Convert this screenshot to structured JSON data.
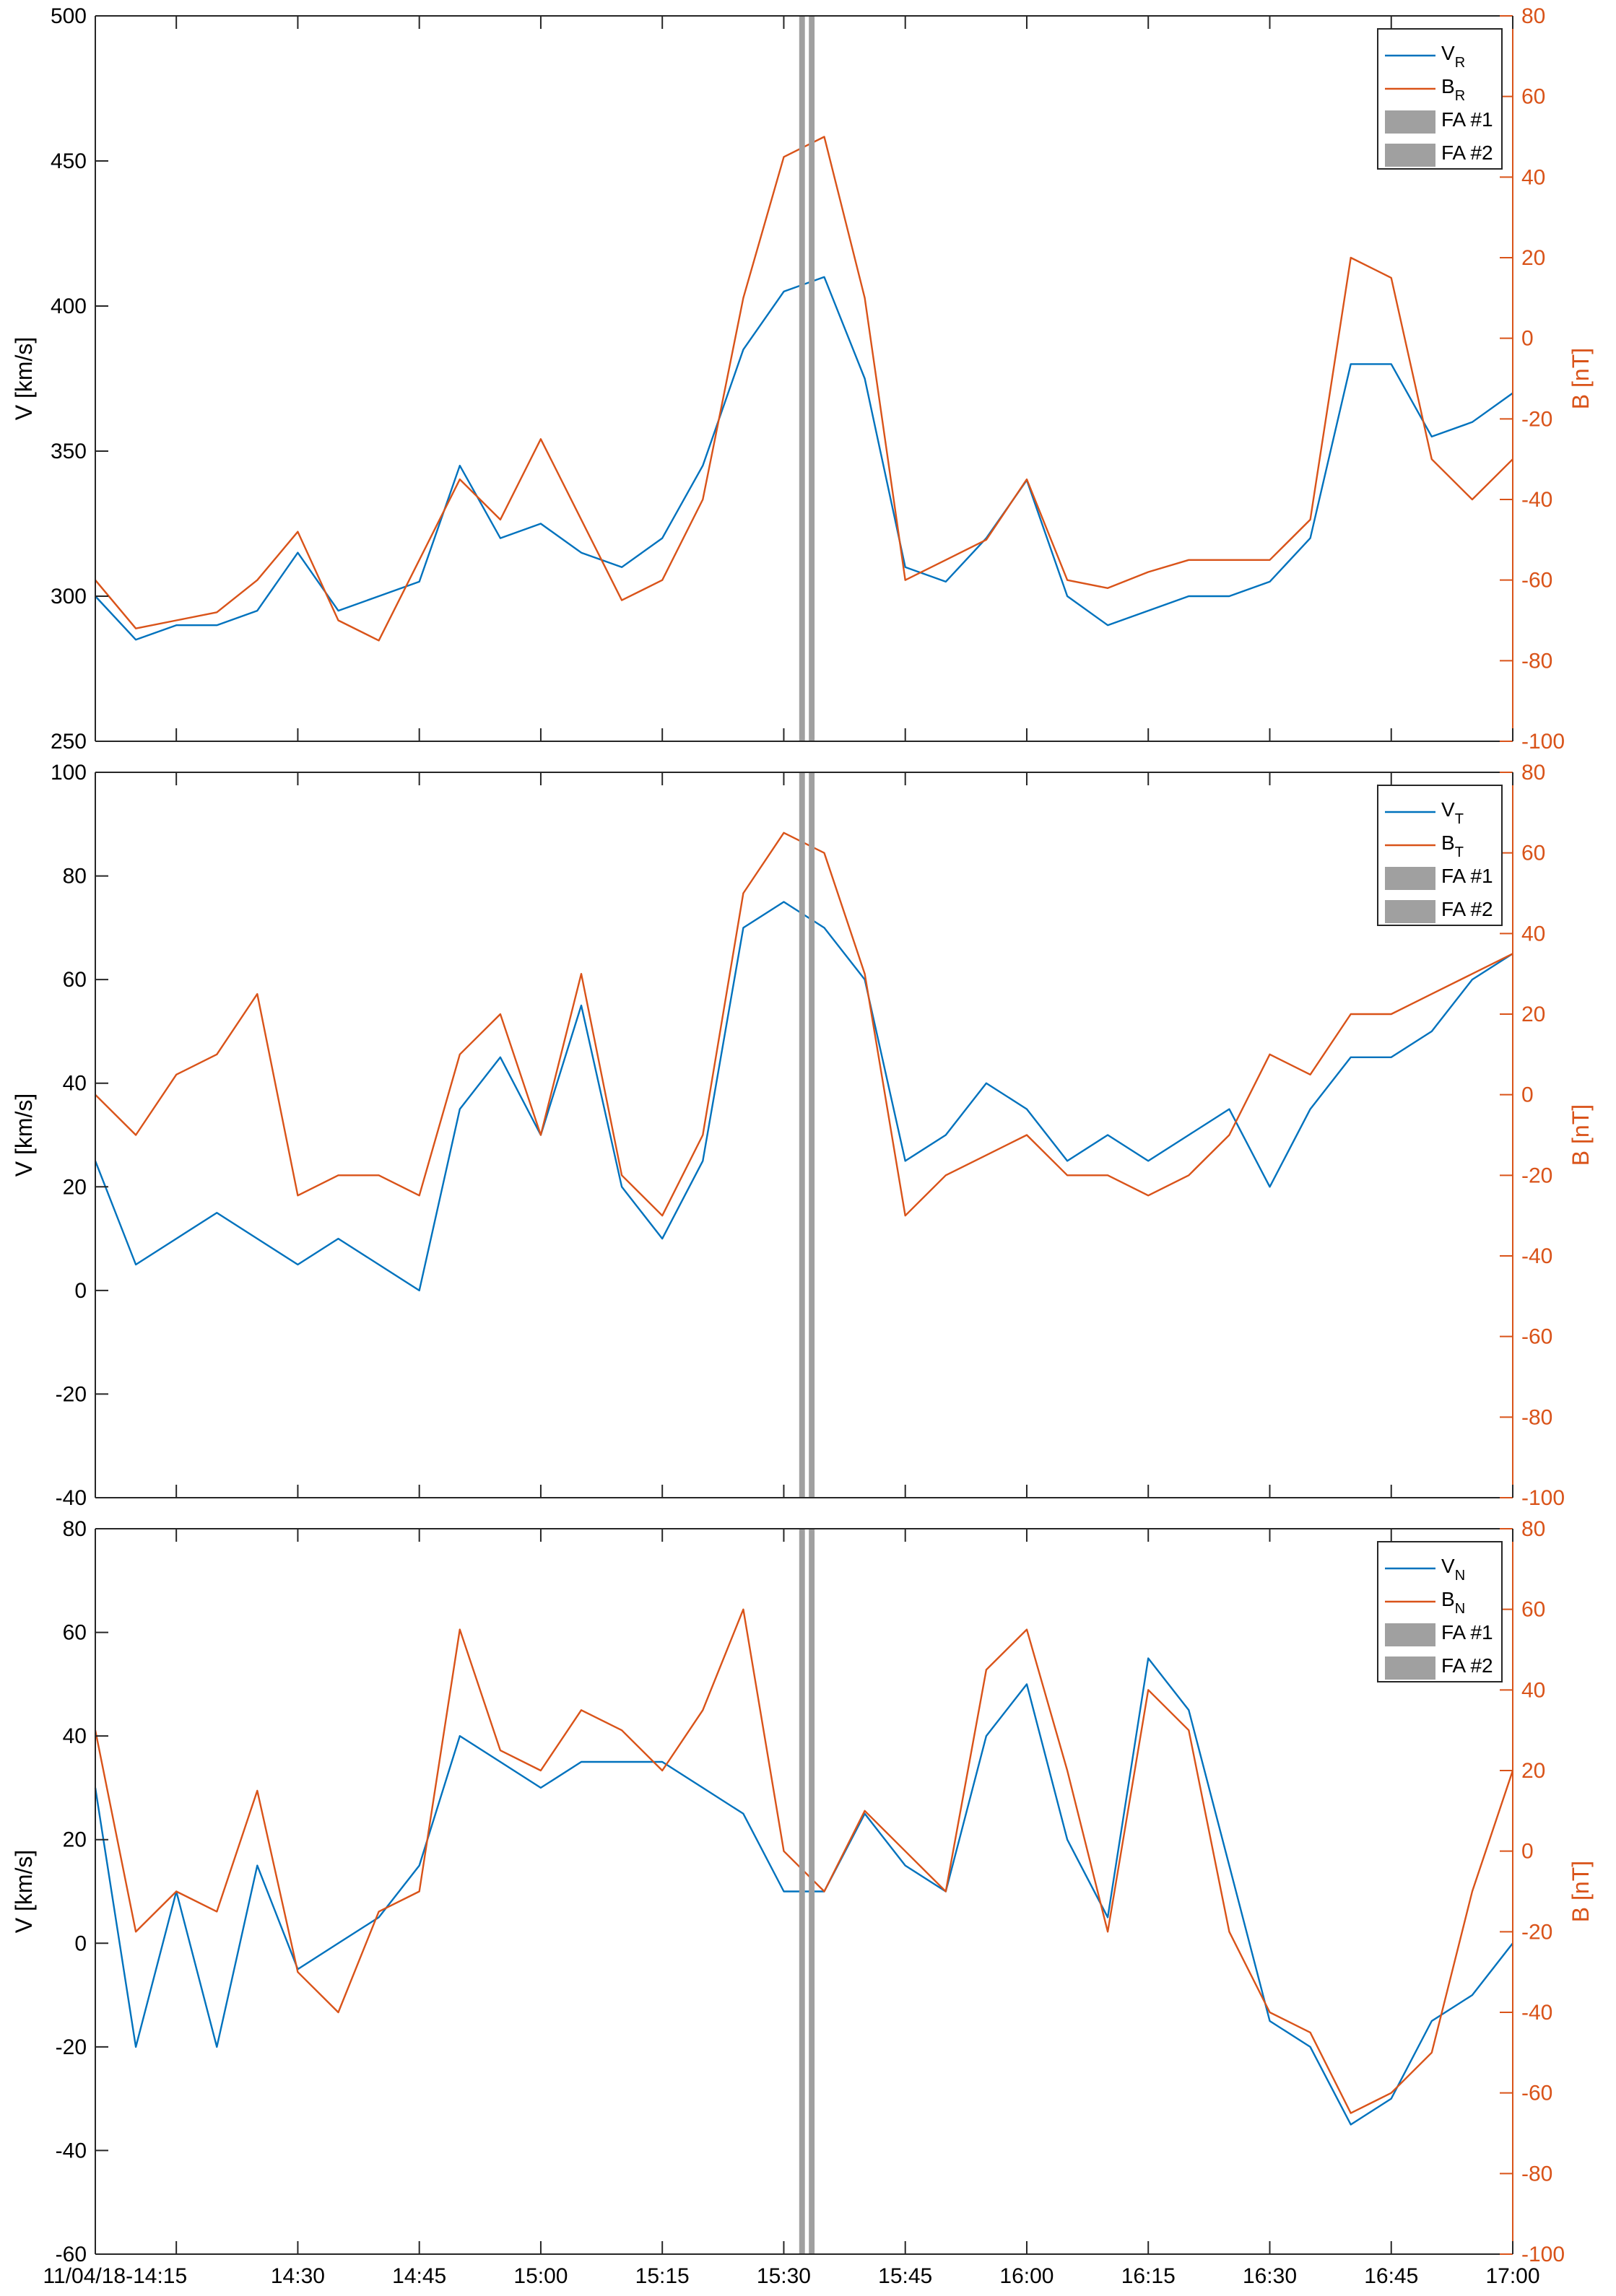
{
  "colors": {
    "velocity": "#0072bd",
    "field": "#d95319",
    "fa_band": "#a0a0a0",
    "axis": "#262626"
  },
  "chart_data": {
    "type": "line",
    "x_range": [
      "14:05",
      "17:00"
    ],
    "x_ticks": [
      {
        "time": "14:15",
        "label": "11/04/18-14:15"
      },
      {
        "time": "14:30",
        "label": "14:30"
      },
      {
        "time": "14:45",
        "label": "14:45"
      },
      {
        "time": "15:00",
        "label": "15:00"
      },
      {
        "time": "15:15",
        "label": "15:15"
      },
      {
        "time": "15:30",
        "label": "15:30"
      },
      {
        "time": "15:45",
        "label": "15:45"
      },
      {
        "time": "16:00",
        "label": "16:00"
      },
      {
        "time": "16:15",
        "label": "16:15"
      },
      {
        "time": "16:30",
        "label": "16:30"
      },
      {
        "time": "16:45",
        "label": "16:45"
      },
      {
        "time": "17:00",
        "label": "17:00"
      }
    ],
    "fa_intervals": [
      {
        "name": "FA #1",
        "start": "15:31.9",
        "end": "15:32.6"
      },
      {
        "name": "FA #2",
        "start": "15:33.1",
        "end": "15:33.8"
      }
    ],
    "panels": [
      {
        "component": "R",
        "ylabel_left": "V [km/s]",
        "ylabel_right": "B [nT]",
        "ylim_left": [
          250,
          500
        ],
        "yticks_left": [
          250,
          300,
          350,
          400,
          450,
          500
        ],
        "ylim_right": [
          -100,
          80
        ],
        "yticks_right": [
          -100,
          -80,
          -60,
          -40,
          -20,
          0,
          20,
          40,
          60,
          80
        ],
        "legend": [
          {
            "main": "V",
            "sub": "R"
          },
          {
            "main": "B",
            "sub": "R"
          },
          {
            "main": "FA #1",
            "sub": ""
          },
          {
            "main": "FA #2",
            "sub": ""
          }
        ],
        "series": [
          {
            "name": "V_R",
            "axis": "left",
            "x": [
              "14:05",
              "14:10",
              "14:15",
              "14:20",
              "14:25",
              "14:30",
              "14:35",
              "14:40",
              "14:45",
              "14:50",
              "14:55",
              "15:00",
              "15:05",
              "15:10",
              "15:15",
              "15:20",
              "15:25",
              "15:30",
              "15:35",
              "15:40",
              "15:45",
              "15:50",
              "15:55",
              "16:00",
              "16:05",
              "16:10",
              "16:15",
              "16:20",
              "16:25",
              "16:30",
              "16:35",
              "16:40",
              "16:45",
              "16:50",
              "16:55",
              "17:00"
            ],
            "y": [
              300,
              285,
              290,
              290,
              295,
              315,
              295,
              300,
              305,
              345,
              320,
              325,
              315,
              310,
              320,
              345,
              385,
              405,
              410,
              375,
              310,
              305,
              320,
              340,
              300,
              290,
              295,
              300,
              300,
              305,
              320,
              380,
              380,
              355,
              360,
              370
            ]
          },
          {
            "name": "B_R",
            "axis": "right",
            "x": [
              "14:05",
              "14:10",
              "14:15",
              "14:20",
              "14:25",
              "14:30",
              "14:35",
              "14:40",
              "14:45",
              "14:50",
              "14:55",
              "15:00",
              "15:05",
              "15:10",
              "15:15",
              "15:20",
              "15:25",
              "15:30",
              "15:35",
              "15:40",
              "15:45",
              "15:50",
              "15:55",
              "16:00",
              "16:05",
              "16:10",
              "16:15",
              "16:20",
              "16:25",
              "16:30",
              "16:35",
              "16:40",
              "16:45",
              "16:50",
              "16:55",
              "17:00"
            ],
            "y": [
              -60,
              -72,
              -70,
              -68,
              -60,
              -48,
              -70,
              -75,
              -55,
              -35,
              -45,
              -25,
              -45,
              -65,
              -60,
              -40,
              10,
              45,
              50,
              10,
              -60,
              -55,
              -50,
              -35,
              -60,
              -62,
              -58,
              -55,
              -55,
              -55,
              -45,
              20,
              15,
              -30,
              -40,
              -30
            ]
          }
        ]
      },
      {
        "component": "T",
        "ylabel_left": "V [km/s]",
        "ylabel_right": "B [nT]",
        "ylim_left": [
          -40,
          100
        ],
        "yticks_left": [
          -40,
          -20,
          0,
          20,
          40,
          60,
          80,
          100
        ],
        "ylim_right": [
          -100,
          80
        ],
        "yticks_right": [
          -100,
          -80,
          -60,
          -40,
          -20,
          0,
          20,
          40,
          60,
          80
        ],
        "legend": [
          {
            "main": "V",
            "sub": "T"
          },
          {
            "main": "B",
            "sub": "T"
          },
          {
            "main": "FA #1",
            "sub": ""
          },
          {
            "main": "FA #2",
            "sub": ""
          }
        ],
        "series": [
          {
            "name": "V_T",
            "axis": "left",
            "x": [
              "14:05",
              "14:10",
              "14:15",
              "14:20",
              "14:25",
              "14:30",
              "14:35",
              "14:40",
              "14:45",
              "14:50",
              "14:55",
              "15:00",
              "15:05",
              "15:10",
              "15:15",
              "15:20",
              "15:25",
              "15:30",
              "15:35",
              "15:40",
              "15:45",
              "15:50",
              "15:55",
              "16:00",
              "16:05",
              "16:10",
              "16:15",
              "16:20",
              "16:25",
              "16:30",
              "16:35",
              "16:40",
              "16:45",
              "16:50",
              "16:55",
              "17:00"
            ],
            "y": [
              25,
              5,
              10,
              15,
              10,
              5,
              10,
              5,
              0,
              35,
              45,
              30,
              55,
              20,
              10,
              25,
              70,
              75,
              70,
              60,
              25,
              30,
              40,
              35,
              25,
              30,
              25,
              30,
              35,
              20,
              35,
              45,
              45,
              50,
              60,
              65
            ]
          },
          {
            "name": "B_T",
            "axis": "right",
            "x": [
              "14:05",
              "14:10",
              "14:15",
              "14:20",
              "14:25",
              "14:30",
              "14:35",
              "14:40",
              "14:45",
              "14:50",
              "14:55",
              "15:00",
              "15:05",
              "15:10",
              "15:15",
              "15:20",
              "15:25",
              "15:30",
              "15:35",
              "15:40",
              "15:45",
              "15:50",
              "15:55",
              "16:00",
              "16:05",
              "16:10",
              "16:15",
              "16:20",
              "16:25",
              "16:30",
              "16:35",
              "16:40",
              "16:45",
              "16:50",
              "16:55",
              "17:00"
            ],
            "y": [
              0,
              -10,
              5,
              10,
              25,
              -25,
              -20,
              -20,
              -25,
              10,
              20,
              -10,
              30,
              -20,
              -30,
              -10,
              50,
              65,
              60,
              30,
              -30,
              -20,
              -15,
              -10,
              -20,
              -20,
              -25,
              -20,
              -10,
              10,
              5,
              20,
              20,
              25,
              30,
              35
            ]
          }
        ]
      },
      {
        "component": "N",
        "ylabel_left": "V [km/s]",
        "ylabel_right": "B [nT]",
        "ylim_left": [
          -60,
          80
        ],
        "yticks_left": [
          -60,
          -40,
          -20,
          0,
          20,
          40,
          60,
          80
        ],
        "ylim_right": [
          -100,
          80
        ],
        "yticks_right": [
          -100,
          -80,
          -60,
          -40,
          -20,
          0,
          20,
          40,
          60,
          80
        ],
        "legend": [
          {
            "main": "V",
            "sub": "N"
          },
          {
            "main": "B",
            "sub": "N"
          },
          {
            "main": "FA #1",
            "sub": ""
          },
          {
            "main": "FA #2",
            "sub": ""
          }
        ],
        "series": [
          {
            "name": "V_N",
            "axis": "left",
            "x": [
              "14:05",
              "14:10",
              "14:15",
              "14:20",
              "14:25",
              "14:30",
              "14:35",
              "14:40",
              "14:45",
              "14:50",
              "14:55",
              "15:00",
              "15:05",
              "15:10",
              "15:15",
              "15:20",
              "15:25",
              "15:30",
              "15:35",
              "15:40",
              "15:45",
              "15:50",
              "15:55",
              "16:00",
              "16:05",
              "16:10",
              "16:15",
              "16:20",
              "16:25",
              "16:30",
              "16:35",
              "16:40",
              "16:45",
              "16:50",
              "16:55",
              "17:00"
            ],
            "y": [
              30,
              -20,
              10,
              -20,
              15,
              -5,
              0,
              5,
              15,
              40,
              35,
              30,
              35,
              35,
              35,
              30,
              25,
              10,
              10,
              25,
              15,
              10,
              40,
              50,
              20,
              5,
              55,
              45,
              15,
              -15,
              -20,
              -35,
              -30,
              -15,
              -10,
              0
            ]
          },
          {
            "name": "B_N",
            "axis": "right",
            "x": [
              "14:05",
              "14:10",
              "14:15",
              "14:20",
              "14:25",
              "14:30",
              "14:35",
              "14:40",
              "14:45",
              "14:50",
              "14:55",
              "15:00",
              "15:05",
              "15:10",
              "15:15",
              "15:20",
              "15:25",
              "15:30",
              "15:35",
              "15:40",
              "15:45",
              "15:50",
              "15:55",
              "16:00",
              "16:05",
              "16:10",
              "16:15",
              "16:20",
              "16:25",
              "16:30",
              "16:35",
              "16:40",
              "16:45",
              "16:50",
              "16:55",
              "17:00"
            ],
            "y": [
              30,
              -20,
              -10,
              -15,
              15,
              -30,
              -40,
              -15,
              -10,
              55,
              25,
              20,
              35,
              30,
              20,
              35,
              60,
              0,
              -10,
              10,
              0,
              -10,
              45,
              55,
              20,
              -20,
              40,
              30,
              -20,
              -40,
              -45,
              -65,
              -60,
              -50,
              -10,
              20
            ]
          }
        ]
      }
    ]
  }
}
